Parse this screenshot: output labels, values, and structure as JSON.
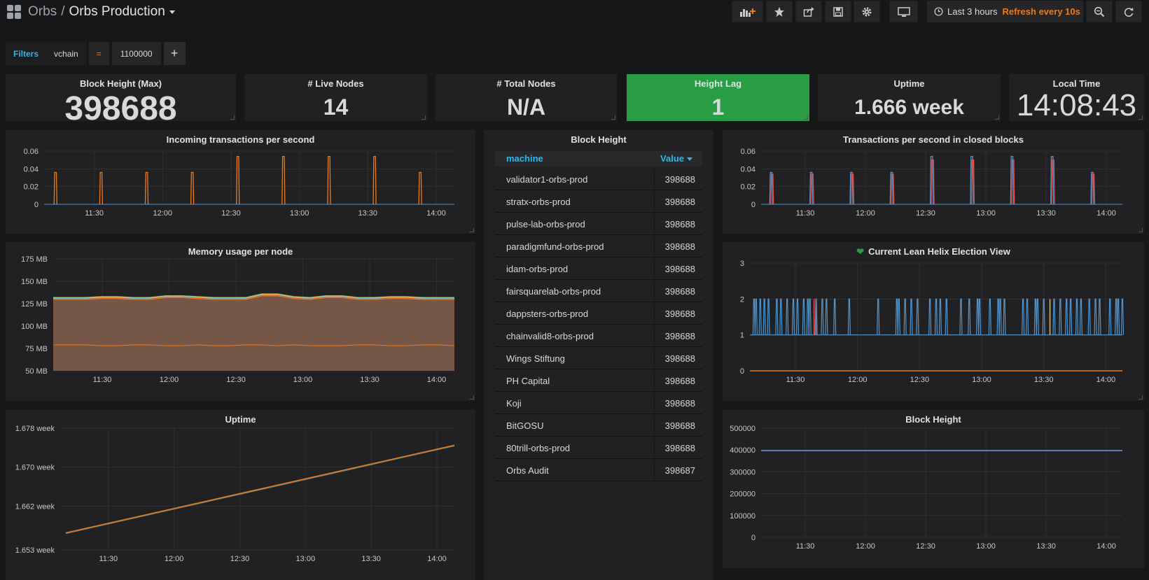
{
  "header": {
    "folder": "Orbs",
    "separator": "/",
    "dashboard_title": "Orbs Production",
    "time_range": "Last 3 hours",
    "refresh": "Refresh every 10s",
    "icons": [
      "add-panel-icon",
      "star-icon",
      "share-icon",
      "save-icon",
      "settings-icon",
      "tv-mode-icon",
      "clock-icon",
      "zoom-out-icon",
      "refresh-icon"
    ]
  },
  "filters": {
    "label": "Filters",
    "key": "vchain",
    "operator": "=",
    "value": "1100000",
    "add": "+"
  },
  "stats": [
    {
      "title": "Block Height (Max)",
      "value": "398688"
    },
    {
      "title": "# Live Nodes",
      "value": "14"
    },
    {
      "title": "# Total Nodes",
      "value": "N/A"
    },
    {
      "title": "Height Lag",
      "value": "1",
      "background": "#299c46"
    },
    {
      "title": "Uptime",
      "value": "1.666 week"
    },
    {
      "title": "Local Time",
      "value": "14:08:43"
    }
  ],
  "table": {
    "title": "Block Height",
    "col_machine": "machine",
    "col_value": "Value",
    "rows": [
      {
        "machine": "validator1-orbs-prod",
        "value": "398688"
      },
      {
        "machine": "stratx-orbs-prod",
        "value": "398688"
      },
      {
        "machine": "pulse-lab-orbs-prod",
        "value": "398688"
      },
      {
        "machine": "paradigmfund-orbs-prod",
        "value": "398688"
      },
      {
        "machine": "idam-orbs-prod",
        "value": "398688"
      },
      {
        "machine": "fairsquarelab-orbs-prod",
        "value": "398688"
      },
      {
        "machine": "dappsters-orbs-prod",
        "value": "398688"
      },
      {
        "machine": "chainvalid8-orbs-prod",
        "value": "398688"
      },
      {
        "machine": "Wings Stiftung",
        "value": "398688"
      },
      {
        "machine": "PH Capital",
        "value": "398688"
      },
      {
        "machine": "Koji",
        "value": "398688"
      },
      {
        "machine": "BitGOSU",
        "value": "398688"
      },
      {
        "machine": "80trill-orbs-prod",
        "value": "398688"
      },
      {
        "machine": "Orbs Audit",
        "value": "398687"
      }
    ]
  },
  "chart_data": [
    {
      "id": "incoming-tps",
      "type": "line",
      "title": "Incoming transactions per second",
      "x_ticks": [
        "11:30",
        "12:00",
        "12:30",
        "13:00",
        "13:30",
        "14:00"
      ],
      "y_ticks": [
        "0",
        "0.02",
        "0.04",
        "0.06"
      ],
      "ylim": [
        0,
        0.06
      ],
      "xlim": [
        "11:08",
        "14:08"
      ],
      "x_tick_minutes": [
        30,
        60,
        90,
        120,
        150,
        180
      ],
      "x_start_minutes": 8,
      "x_end_minutes": 188,
      "series": [
        {
          "color": "#eb7b18",
          "spike_minutes": [
            13,
            33,
            53,
            73,
            93,
            113,
            133,
            153,
            173
          ],
          "spike_values": [
            0.036,
            0.036,
            0.036,
            0.036,
            0.054,
            0.054,
            0.054,
            0.054,
            0.036
          ]
        }
      ]
    },
    {
      "id": "tps-closed",
      "type": "line",
      "title": "Transactions per second in closed blocks",
      "x_ticks": [
        "11:30",
        "12:00",
        "12:30",
        "13:00",
        "13:30",
        "14:00"
      ],
      "y_ticks": [
        "0",
        "0.02",
        "0.04",
        "0.06"
      ],
      "ylim": [
        0,
        0.06
      ],
      "x_tick_minutes": [
        30,
        60,
        90,
        120,
        150,
        180
      ],
      "x_start_minutes": 8,
      "x_end_minutes": 188,
      "series": [
        {
          "color": "#5195ce",
          "spike_minutes": [
            13,
            33,
            53,
            73,
            93,
            113,
            133,
            153,
            173
          ],
          "spike_values": [
            0.036,
            0.036,
            0.036,
            0.036,
            0.054,
            0.054,
            0.054,
            0.054,
            0.036
          ]
        },
        {
          "color": "#e24d42",
          "spike_minutes": [
            13.5,
            33.5,
            53.5,
            73.5,
            93.5,
            113.5,
            133.5,
            153.5,
            173.5
          ],
          "spike_values": [
            0.034,
            0.034,
            0.034,
            0.034,
            0.05,
            0.05,
            0.05,
            0.05,
            0.034
          ]
        }
      ]
    },
    {
      "id": "memory",
      "type": "area",
      "title": "Memory usage per node",
      "x_ticks": [
        "11:30",
        "12:00",
        "12:30",
        "13:00",
        "13:30",
        "14:00"
      ],
      "y_ticks": [
        "50 MB",
        "75 MB",
        "100 MB",
        "125 MB",
        "150 MB",
        "175 MB"
      ],
      "y_tick_values": [
        50,
        75,
        100,
        125,
        150,
        175
      ],
      "ylim": [
        50,
        175
      ],
      "x_tick_minutes": [
        30,
        60,
        90,
        120,
        150,
        180
      ],
      "x_start_minutes": 8,
      "x_end_minutes": 188,
      "area_top": [
        132,
        132,
        132,
        133,
        133,
        132,
        132,
        134,
        134,
        133,
        132,
        132,
        132,
        136,
        136,
        133,
        132,
        134,
        134,
        132,
        132,
        133,
        133,
        132,
        132,
        132
      ],
      "lower_line": [
        79,
        79,
        79,
        78,
        78,
        79,
        79,
        78,
        78,
        79,
        78,
        78,
        79,
        79,
        78,
        79,
        78,
        78,
        78,
        79,
        79,
        78,
        78,
        79,
        79,
        78
      ],
      "fill": "#7f5c4a"
    },
    {
      "id": "election-view",
      "type": "line",
      "title": "Current Lean Helix Election View",
      "x_ticks": [
        "11:30",
        "12:00",
        "12:30",
        "13:00",
        "13:30",
        "14:00"
      ],
      "y_ticks": [
        "0",
        "1",
        "2",
        "3"
      ],
      "ylim": [
        0,
        3
      ],
      "x_tick_minutes": [
        30,
        60,
        90,
        120,
        150,
        180
      ],
      "x_start_minutes": 8,
      "x_end_minutes": 188,
      "spike_minutes": [
        10,
        11,
        13,
        15,
        17,
        21,
        23,
        26,
        29,
        31,
        34,
        36,
        37,
        40,
        43,
        45,
        49,
        56,
        70,
        79,
        80,
        83,
        86,
        89,
        95,
        98,
        100,
        103,
        110,
        114,
        118,
        119,
        124,
        128,
        129,
        131,
        140,
        142,
        146,
        147,
        150,
        155,
        158,
        161,
        163,
        166,
        168,
        172,
        175,
        177,
        182,
        185,
        186,
        188
      ],
      "highlight_minutes": [
        39,
        40,
        153
      ],
      "baseline_value": 0
    },
    {
      "id": "uptime",
      "type": "line",
      "title": "Uptime",
      "x_ticks": [
        "11:30",
        "12:00",
        "12:30",
        "13:00",
        "13:30",
        "14:00"
      ],
      "y_ticks": [
        "1.653 week",
        "1.662 week",
        "1.670 week",
        "1.678 week"
      ],
      "y_tick_values": [
        1.653,
        1.662,
        1.67,
        1.678
      ],
      "ylim": [
        1.653,
        1.678
      ],
      "x_tick_minutes": [
        30,
        60,
        90,
        120,
        150,
        180
      ],
      "x_start_minutes": 8,
      "x_end_minutes": 188,
      "series": [
        {
          "color": "#eb7b18",
          "start": 1.6565,
          "end": 1.6745
        }
      ]
    },
    {
      "id": "block-height-graph",
      "type": "line",
      "title": "Block Height",
      "x_ticks": [
        "11:30",
        "12:00",
        "12:30",
        "13:00",
        "13:30",
        "14:00"
      ],
      "y_ticks": [
        "0",
        "100000",
        "200000",
        "300000",
        "400000",
        "500000"
      ],
      "y_tick_values": [
        0,
        100000,
        200000,
        300000,
        400000,
        500000
      ],
      "ylim": [
        0,
        500000
      ],
      "x_tick_minutes": [
        30,
        60,
        90,
        120,
        150,
        180
      ],
      "x_start_minutes": 8,
      "x_end_minutes": 188,
      "series": [
        {
          "color": "#e24d42",
          "value": 398688
        }
      ]
    }
  ]
}
